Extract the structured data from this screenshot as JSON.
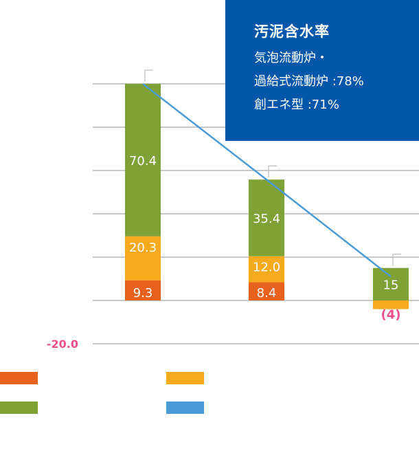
{
  "chart_data": {
    "type": "bar",
    "stacked": true,
    "categories": [
      "",
      "",
      ""
    ],
    "y_tick_labels": [
      {
        "value": -20,
        "label": "-20.0"
      }
    ],
    "ylim": [
      -20,
      110
    ],
    "gridline_step": 20,
    "grid": true,
    "series": [
      {
        "color": "#e8611d",
        "values": [
          9.3,
          8.4,
          0
        ],
        "labels": [
          "9.3",
          "8.4",
          ""
        ]
      },
      {
        "color": "#f7ab1c",
        "values": [
          20.3,
          12.0,
          -4
        ],
        "labels": [
          "20.3",
          "12.0",
          "(4)"
        ]
      },
      {
        "color": "#7fa135",
        "values": [
          70.4,
          35.4,
          15
        ],
        "labels": [
          "70.4",
          "35.4",
          "15"
        ]
      }
    ],
    "line_series": {
      "color": "#4a9ad8",
      "values": [
        100,
        55.8,
        11
      ]
    },
    "error_bars": [
      100,
      55.8,
      15
    ],
    "legend": {
      "placement": "bottom",
      "entries": [
        {
          "color": "#e8611d"
        },
        {
          "color": "#f7ab1c"
        },
        {
          "color": "#7fa135"
        },
        {
          "color": "#4a9ad8"
        }
      ]
    },
    "negative_label_color": "#ee4f8c"
  },
  "annotation": {
    "title": "汚泥含水率",
    "lines": [
      "気泡流動炉・",
      "過給式流動炉 :78%",
      "創エネ型 :71%"
    ]
  }
}
